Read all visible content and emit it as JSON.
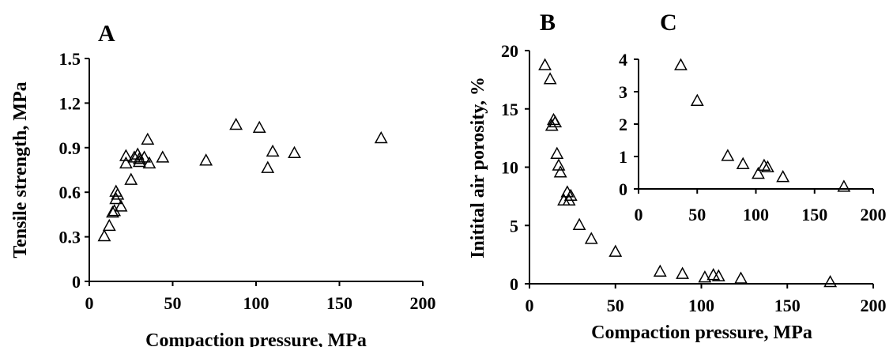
{
  "panel_labels": {
    "a": "A",
    "b": "B",
    "c": "C"
  },
  "colors": {
    "marker_stroke": "#000000",
    "axis": "#000000",
    "background": "#ffffff"
  },
  "chart_data": [
    {
      "id": "A",
      "type": "scatter",
      "title": "",
      "xlabel": "Compaction pressure, MPa",
      "ylabel": "Tensile strength, MPa",
      "xlim": [
        0,
        200
      ],
      "ylim": [
        0,
        1.5
      ],
      "xticks": [
        "0",
        "50",
        "100",
        "150",
        "200"
      ],
      "yticks": [
        "0",
        "0.3",
        "0.6",
        "0.9",
        "1.2",
        "1.5"
      ],
      "grid": false,
      "marker": "open-triangle",
      "series": [
        {
          "x": [
            9,
            12,
            14,
            15,
            16,
            16,
            17,
            19,
            22,
            22,
            25,
            27,
            29,
            30,
            30,
            33,
            35,
            36,
            44,
            70,
            88,
            102,
            107,
            110,
            123,
            175
          ],
          "y": [
            0.3,
            0.37,
            0.46,
            0.47,
            0.55,
            0.6,
            0.58,
            0.5,
            0.79,
            0.84,
            0.68,
            0.83,
            0.85,
            0.8,
            0.82,
            0.83,
            0.95,
            0.79,
            0.83,
            0.81,
            1.05,
            1.03,
            0.76,
            0.87,
            0.86,
            0.96
          ]
        }
      ]
    },
    {
      "id": "B",
      "type": "scatter",
      "title": "",
      "xlabel": "Compaction pressure, MPa",
      "ylabel": "Initital air porosity, %",
      "xlim": [
        0,
        200
      ],
      "ylim": [
        0,
        20
      ],
      "xticks": [
        "0",
        "50",
        "100",
        "150",
        "200"
      ],
      "yticks": [
        "0",
        "5",
        "10",
        "15",
        "20"
      ],
      "grid": false,
      "marker": "open-triangle",
      "series": [
        {
          "x": [
            9,
            12,
            13,
            14,
            15,
            16,
            17,
            18,
            20,
            22,
            23,
            24,
            29,
            36,
            50,
            76,
            89,
            102,
            107,
            110,
            123,
            175
          ],
          "y": [
            18.7,
            17.5,
            13.5,
            14.0,
            13.8,
            11.1,
            10.1,
            9.5,
            7.1,
            7.8,
            7.1,
            7.5,
            5.0,
            3.8,
            2.7,
            1.0,
            0.8,
            0.5,
            0.7,
            0.6,
            0.4,
            0.1
          ]
        }
      ]
    },
    {
      "id": "C",
      "type": "scatter",
      "title": "",
      "xlabel": "",
      "ylabel": "",
      "xlim": [
        0,
        200
      ],
      "ylim": [
        0,
        4
      ],
      "xticks": [
        "0",
        "50",
        "100",
        "150",
        "200"
      ],
      "yticks": [
        "0",
        "1",
        "2",
        "3",
        "4"
      ],
      "grid": false,
      "marker": "open-triangle",
      "series": [
        {
          "x": [
            36,
            50,
            76,
            89,
            102,
            107,
            110,
            123,
            175
          ],
          "y": [
            3.8,
            2.7,
            1.0,
            0.75,
            0.45,
            0.7,
            0.65,
            0.35,
            0.05
          ]
        }
      ]
    }
  ]
}
